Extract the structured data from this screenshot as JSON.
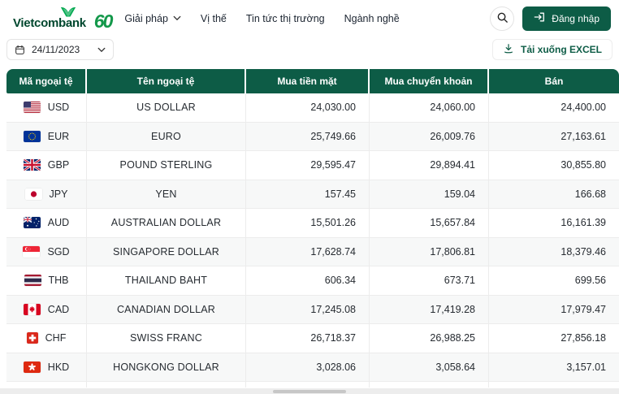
{
  "brand": {
    "name": "Vietcombank",
    "anniversary": "60"
  },
  "nav": {
    "items": [
      {
        "id": "giai-phap",
        "label": "Giải pháp",
        "has_dropdown": true
      },
      {
        "id": "vi-the",
        "label": "Vị thế",
        "has_dropdown": false
      },
      {
        "id": "tin-tuc-thi-truong",
        "label": "Tin tức thị trường",
        "has_dropdown": false
      },
      {
        "id": "nganh-nghe",
        "label": "Ngành nghề",
        "has_dropdown": false
      }
    ],
    "login_label": "Đăng nhập"
  },
  "toolbar": {
    "date_value": "24/11/2023",
    "download_label": "Tải xuống EXCEL"
  },
  "colors": {
    "primary_green": "#0d5c46",
    "logo_green": "#13984a",
    "row_alt": "#f7f8f8"
  },
  "table": {
    "columns": [
      "Mã ngoại tệ",
      "Tên ngoại tệ",
      "Mua tiền mặt",
      "Mua chuyển khoản",
      "Bán"
    ],
    "rows": [
      {
        "code": "USD",
        "name": "US DOLLAR",
        "cash": "24,030.00",
        "transfer": "24,060.00",
        "sell": "24,400.00"
      },
      {
        "code": "EUR",
        "name": "EURO",
        "cash": "25,749.66",
        "transfer": "26,009.76",
        "sell": "27,163.61"
      },
      {
        "code": "GBP",
        "name": "POUND STERLING",
        "cash": "29,595.47",
        "transfer": "29,894.41",
        "sell": "30,855.80"
      },
      {
        "code": "JPY",
        "name": "YEN",
        "cash": "157.45",
        "transfer": "159.04",
        "sell": "166.68"
      },
      {
        "code": "AUD",
        "name": "AUSTRALIAN DOLLAR",
        "cash": "15,501.26",
        "transfer": "15,657.84",
        "sell": "16,161.39"
      },
      {
        "code": "SGD",
        "name": "SINGAPORE DOLLAR",
        "cash": "17,628.74",
        "transfer": "17,806.81",
        "sell": "18,379.46"
      },
      {
        "code": "THB",
        "name": "THAILAND BAHT",
        "cash": "606.34",
        "transfer": "673.71",
        "sell": "699.56"
      },
      {
        "code": "CAD",
        "name": "CANADIAN DOLLAR",
        "cash": "17,245.08",
        "transfer": "17,419.28",
        "sell": "17,979.47"
      },
      {
        "code": "CHF",
        "name": "SWISS FRANC",
        "cash": "26,718.37",
        "transfer": "26,988.25",
        "sell": "27,856.18"
      },
      {
        "code": "HKD",
        "name": "HONGKONG DOLLAR",
        "cash": "3,028.06",
        "transfer": "3,058.64",
        "sell": "3,157.01"
      }
    ]
  }
}
